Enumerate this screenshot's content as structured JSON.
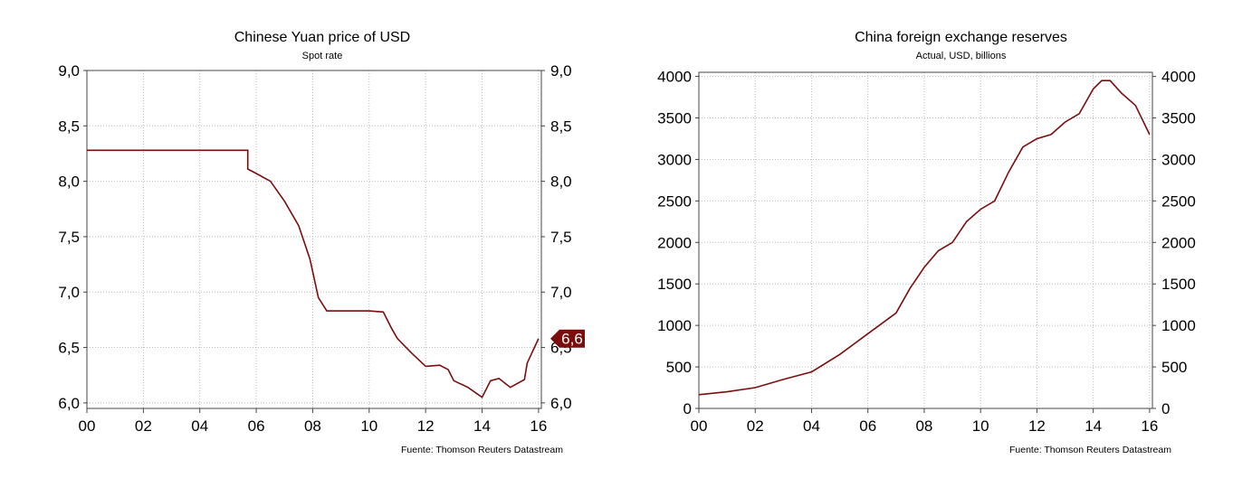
{
  "chart_data": [
    {
      "type": "line",
      "title": "Chinese Yuan price of USD",
      "subtitle": "Spot rate",
      "source": "Fuente: Thomson Reuters Datastream",
      "x_ticks": [
        "00",
        "02",
        "04",
        "06",
        "08",
        "10",
        "12",
        "14",
        "16"
      ],
      "y_ticks": [
        "6,0",
        "6,5",
        "7,0",
        "7,5",
        "8,0",
        "8,5",
        "9,0"
      ],
      "xlim": [
        2000,
        2016.1
      ],
      "ylim": [
        5.95,
        9.0
      ],
      "grid": true,
      "line_color": "#7b0d0d",
      "last_value_label": "6,6",
      "series": [
        {
          "x": [
            2000,
            2002.8,
            2002.8,
            2005.7,
            2005.7,
            2006.0,
            2006.5,
            2007.0,
            2007.5,
            2007.9,
            2008.2,
            2008.5,
            2009.0,
            2009.5,
            2010.0,
            2010.5,
            2010.8,
            2011.0,
            2011.5,
            2012.0,
            2012.5,
            2012.8,
            2013.0,
            2013.5,
            2014.0,
            2014.3,
            2014.6,
            2015.0,
            2015.5,
            2015.6,
            2016.0
          ],
          "y": [
            8.28,
            8.28,
            8.28,
            8.28,
            8.11,
            8.07,
            8.0,
            7.82,
            7.6,
            7.3,
            6.95,
            6.83,
            6.83,
            6.83,
            6.83,
            6.82,
            6.67,
            6.58,
            6.45,
            6.33,
            6.34,
            6.3,
            6.2,
            6.14,
            6.05,
            6.2,
            6.22,
            6.14,
            6.21,
            6.36,
            6.58
          ]
        }
      ]
    },
    {
      "type": "line",
      "title": "China foreign exchange reserves",
      "subtitle": "Actual, USD, billions",
      "source": "Fuente: Thomson Reuters Datastream",
      "x_ticks": [
        "00",
        "02",
        "04",
        "06",
        "08",
        "10",
        "12",
        "14",
        "16"
      ],
      "y_ticks": [
        "0",
        "500",
        "1000",
        "1500",
        "2000",
        "2500",
        "3000",
        "3500",
        "4000"
      ],
      "xlim": [
        2000,
        2016.1
      ],
      "ylim": [
        0,
        4050
      ],
      "grid": true,
      "line_color": "#7b0d0d",
      "series": [
        {
          "x": [
            2000,
            2001,
            2002,
            2003,
            2004,
            2005,
            2006,
            2007,
            2007.5,
            2008,
            2008.5,
            2009,
            2009.5,
            2010,
            2010.5,
            2011,
            2011.5,
            2012,
            2012.5,
            2013,
            2013.5,
            2014,
            2014.3,
            2014.6,
            2015,
            2015.5,
            2016
          ],
          "y": [
            165,
            200,
            250,
            350,
            440,
            650,
            900,
            1150,
            1450,
            1700,
            1900,
            2000,
            2250,
            2400,
            2500,
            2850,
            3150,
            3250,
            3300,
            3450,
            3550,
            3850,
            3950,
            3950,
            3800,
            3650,
            3300
          ]
        }
      ]
    }
  ]
}
